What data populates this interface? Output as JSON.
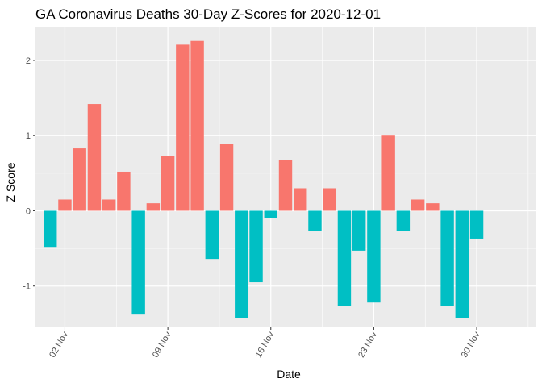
{
  "chart_data": {
    "type": "bar",
    "title": "GA Coronavirus Deaths 30-Day Z-Scores for 2020-12-01",
    "xlabel": "Date",
    "ylabel": "Z Score",
    "x_ticks": [
      {
        "date": "2020-11-02",
        "label": "02 Nov"
      },
      {
        "date": "2020-11-09",
        "label": "09 Nov"
      },
      {
        "date": "2020-11-16",
        "label": "16 Nov"
      },
      {
        "date": "2020-11-23",
        "label": "23 Nov"
      },
      {
        "date": "2020-11-30",
        "label": "30 Nov"
      }
    ],
    "y_ticks": [
      -1,
      0,
      1,
      2
    ],
    "y_tick_labels": [
      "-1",
      "0",
      "1",
      "2"
    ],
    "ylim": [
      -1.55,
      2.45
    ],
    "xlim": [
      "2020-10-31",
      "2020-12-04"
    ],
    "grid": true,
    "legend": "none",
    "colors": {
      "positive": "#F8766D",
      "negative": "#00BFC4",
      "panel": "#EBEBEB",
      "grid": "#FFFFFF"
    },
    "dates": [
      "2020-11-01",
      "2020-11-02",
      "2020-11-03",
      "2020-11-04",
      "2020-11-05",
      "2020-11-06",
      "2020-11-07",
      "2020-11-08",
      "2020-11-09",
      "2020-11-10",
      "2020-11-11",
      "2020-11-12",
      "2020-11-13",
      "2020-11-14",
      "2020-11-15",
      "2020-11-16",
      "2020-11-17",
      "2020-11-18",
      "2020-11-19",
      "2020-11-20",
      "2020-11-21",
      "2020-11-22",
      "2020-11-23",
      "2020-11-24",
      "2020-11-25",
      "2020-11-26",
      "2020-11-27",
      "2020-11-28",
      "2020-11-29",
      "2020-11-30"
    ],
    "values": [
      -0.48,
      0.15,
      0.83,
      1.42,
      0.15,
      0.52,
      -1.38,
      0.1,
      0.73,
      2.21,
      2.26,
      -0.64,
      0.89,
      -1.43,
      -0.95,
      -0.1,
      0.67,
      0.3,
      -0.27,
      0.3,
      -1.27,
      -0.53,
      -1.22,
      1.0,
      -0.27,
      0.15,
      0.1,
      -1.27,
      -1.43,
      -0.37
    ]
  }
}
